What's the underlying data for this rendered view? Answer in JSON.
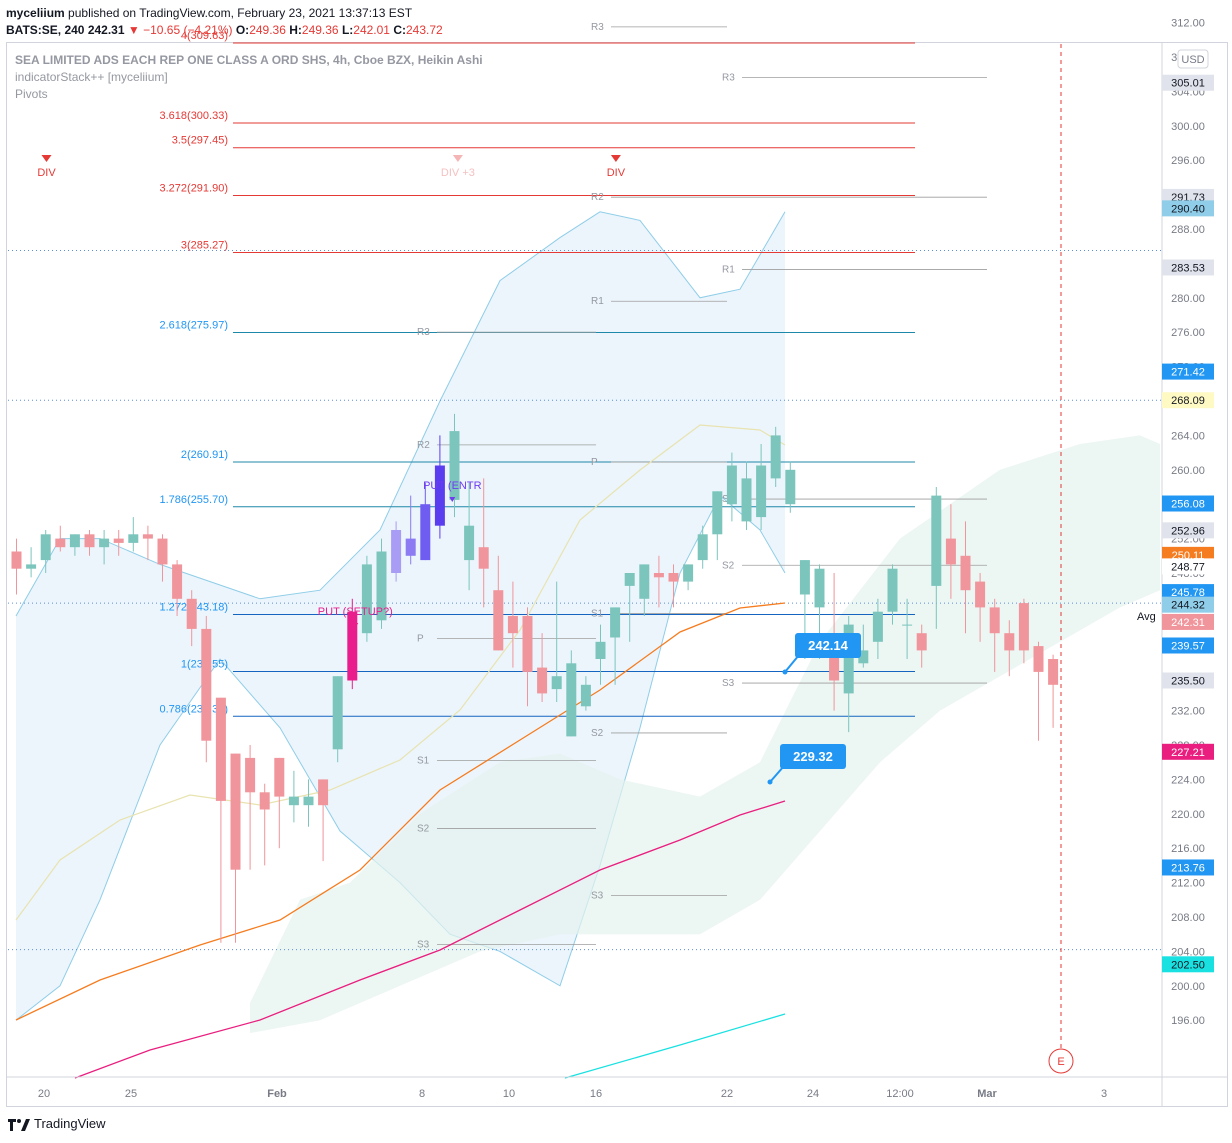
{
  "header": {
    "author": "myceliium",
    "published": "published on TradingView.com, February 23, 2021 13:37:13 EST",
    "symbol": "BATS:SE, 240",
    "last": "242.31",
    "change": "−10.65 (−4.21%)",
    "o_label": "O:",
    "o": "249.36",
    "h_label": "H:",
    "h": "249.36",
    "l_label": "L:",
    "l": "242.01",
    "c_label": "C:",
    "c": "243.72"
  },
  "legend": {
    "title": "SEA LIMITED ADS EACH REP ONE CLASS A ORD SHS, 4h, Cboe BZX, Heikin Ashi",
    "line2": "indicatorStack++ [myceliium]",
    "line3": "Pivots"
  },
  "footer": {
    "brand": "TradingView"
  },
  "currency": "USD",
  "avg_label": "Avg",
  "colors": {
    "up": "#7cc5bd",
    "down": "#f0959b",
    "bb": "#8fcde8",
    "ema_orange": "#f57c1f",
    "ema_magenta": "#e91e7f",
    "cyan": "#19e1e1",
    "fib_red": "#e53935",
    "fib_blue": "#2196f3"
  },
  "chart_data": {
    "type": "candlestick",
    "x_ticks": [
      "20",
      "25",
      "Feb",
      "8",
      "10",
      "16",
      "22",
      "24",
      "12:00",
      "Mar",
      "3"
    ],
    "y_ticks": [
      312,
      308,
      304,
      300,
      296,
      292,
      288,
      284,
      280,
      276,
      272,
      268,
      264,
      260,
      256,
      252,
      248,
      244,
      240,
      236,
      232,
      228,
      224,
      220,
      216,
      212,
      208,
      204,
      200,
      196
    ],
    "ylim": [
      194.5,
      314.5
    ],
    "candles": [
      [
        250.5,
        248.5,
        252,
        245.5
      ],
      [
        248.5,
        249,
        251,
        247.5
      ],
      [
        249.5,
        252.5,
        253,
        248
      ],
      [
        252,
        251,
        253.5,
        250.5
      ],
      [
        251,
        252.5,
        252.5,
        250
      ],
      [
        252.5,
        251,
        253,
        250
      ],
      [
        251,
        252,
        253,
        249
      ],
      [
        252,
        251.5,
        253,
        250
      ],
      [
        251.5,
        252.5,
        254.5,
        250.5
      ],
      [
        252.5,
        252,
        253.5,
        249.5
      ],
      [
        252,
        249,
        252.5,
        247
      ],
      [
        249,
        245,
        249.5,
        243
      ],
      [
        245,
        241.5,
        246,
        239.5
      ],
      [
        241.5,
        228.5,
        243,
        226
      ],
      [
        233.5,
        221.5,
        233.5,
        205
      ],
      [
        227,
        213.5,
        227,
        205
      ],
      [
        226.5,
        222.5,
        228,
        213.5
      ],
      [
        222.5,
        220.5,
        223.5,
        214
      ],
      [
        226.5,
        222,
        226.5,
        216
      ],
      [
        221,
        222,
        225,
        219
      ],
      [
        221,
        222,
        224,
        218.5
      ],
      [
        224,
        221,
        224,
        214.5
      ],
      [
        227.5,
        236,
        236,
        226
      ],
      [
        235.5,
        243.5,
        245,
        234.5
      ],
      [
        241,
        249,
        250,
        240
      ],
      [
        242.5,
        250.5,
        252,
        241.5
      ],
      [
        248,
        253,
        254,
        247
      ],
      [
        250,
        252,
        257,
        249
      ],
      [
        256,
        249.5,
        258.5,
        249.5
      ],
      [
        260.5,
        253.5,
        264,
        252
      ],
      [
        256.5,
        264.5,
        266.5,
        254.5
      ],
      [
        249.5,
        253.5,
        258.5,
        246
      ],
      [
        251,
        248.5,
        259,
        244
      ],
      [
        246,
        239,
        250,
        239
      ],
      [
        243,
        241,
        247,
        237
      ],
      [
        243,
        236.5,
        244,
        232.5
      ],
      [
        237,
        234,
        241,
        233
      ],
      [
        234.5,
        236,
        247,
        233
      ],
      [
        229,
        237.5,
        239,
        229
      ],
      [
        232.5,
        235,
        236,
        232
      ],
      [
        238,
        240,
        242,
        235
      ],
      [
        240.5,
        244,
        244,
        235
      ],
      [
        246.5,
        248,
        248,
        240
      ],
      [
        245,
        249,
        249,
        243
      ],
      [
        248,
        247.5,
        250,
        244
      ],
      [
        248,
        247,
        249,
        244
      ],
      [
        247,
        249,
        249,
        246
      ],
      [
        249.5,
        252.5,
        253.5,
        248.5
      ],
      [
        252.5,
        257.5,
        257.5,
        249.5
      ],
      [
        256,
        260.5,
        262,
        254
      ],
      [
        254,
        259,
        261,
        253
      ],
      [
        254.5,
        260.5,
        263,
        253
      ],
      [
        259,
        264,
        265,
        258
      ],
      [
        256,
        260,
        261,
        255
      ],
      [
        245.5,
        249.5,
        249.5,
        238
      ],
      [
        244,
        248.5,
        249,
        238
      ],
      [
        240,
        235.5,
        248,
        232
      ],
      [
        234,
        242,
        243,
        229.5
      ],
      [
        237.5,
        239,
        242,
        237
      ],
      [
        240,
        243.5,
        245,
        238
      ],
      [
        243.5,
        248.5,
        249,
        242
      ],
      [
        242,
        242,
        245,
        238
      ],
      [
        241,
        239,
        242,
        237
      ],
      [
        246.5,
        257,
        258,
        241.5
      ],
      [
        252,
        249,
        256,
        245
      ],
      [
        250,
        246,
        254,
        241
      ],
      [
        247,
        244,
        248,
        240
      ],
      [
        244,
        241,
        245,
        236.5
      ],
      [
        241,
        239,
        242.5,
        236
      ],
      [
        244.5,
        239,
        245,
        237.5
      ],
      [
        239.5,
        236.5,
        240,
        228.5
      ],
      [
        238,
        235,
        238.5,
        230
      ]
    ],
    "fib_levels": [
      {
        "ratio": "4",
        "value": 309.63,
        "label": "4(309.63)"
      },
      {
        "ratio": "3.618",
        "value": 300.33,
        "label": "3.618(300.33)"
      },
      {
        "ratio": "3.5",
        "value": 297.45,
        "label": "3.5(297.45)"
      },
      {
        "ratio": "3.272",
        "value": 291.9,
        "label": "3.272(291.90)"
      },
      {
        "ratio": "3",
        "value": 285.27,
        "label": "3(285.27)"
      },
      {
        "ratio": "2.618",
        "value": 275.97,
        "label": "2.618(275.97)"
      },
      {
        "ratio": "2",
        "value": 260.91,
        "label": "2(260.91)"
      },
      {
        "ratio": "1.786",
        "value": 255.7,
        "label": "1.786(255.70)"
      },
      {
        "ratio": "1.272",
        "value": 243.18,
        "label": "1.272(243.18)"
      },
      {
        "ratio": "1",
        "value": 236.55,
        "label": "1(236.55)"
      },
      {
        "ratio": "0.786",
        "value": 231.34,
        "label": "0.786(231.34)"
      }
    ],
    "pivots": [
      {
        "label": "R3",
        "value": 311.5,
        "x0": "16",
        "x1": "22"
      },
      {
        "label": "R3",
        "value": 305.6,
        "x0": "22",
        "x1": "24"
      },
      {
        "label": "R2",
        "value": 291.7,
        "x0": "16",
        "x1": "24"
      },
      {
        "label": "R1",
        "value": 283.3,
        "x0": "22",
        "x1": "24"
      },
      {
        "label": "R1",
        "value": 279.6,
        "x0": "16",
        "x1": "22"
      },
      {
        "label": "R3",
        "value": 276.0,
        "x0": "8",
        "x1": "16"
      },
      {
        "label": "R2",
        "value": 262.9,
        "x0": "8",
        "x1": "16"
      },
      {
        "label": "P",
        "value": 260.9,
        "x0": "16",
        "x1": "22"
      },
      {
        "label": "S1",
        "value": 256.6,
        "x0": "22",
        "x1": "24"
      },
      {
        "label": "S2",
        "value": 248.9,
        "x0": "22",
        "x1": "24"
      },
      {
        "label": "S1",
        "value": 243.3,
        "x0": "16",
        "x1": "22"
      },
      {
        "label": "P",
        "value": 240.4,
        "x0": "8",
        "x1": "16"
      },
      {
        "label": "S3",
        "value": 235.2,
        "x0": "22",
        "x1": "24"
      },
      {
        "label": "S2",
        "value": 229.4,
        "x0": "16",
        "x1": "22"
      },
      {
        "label": "S1",
        "value": 226.2,
        "x0": "8",
        "x1": "16"
      },
      {
        "label": "S2",
        "value": 218.3,
        "x0": "8",
        "x1": "16"
      },
      {
        "label": "S3",
        "value": 210.5,
        "x0": "16",
        "x1": "22"
      },
      {
        "label": "S3",
        "value": 204.8,
        "x0": "8",
        "x1": "16"
      }
    ],
    "markers": [
      {
        "text": "DIV",
        "index": 0,
        "type": "div"
      },
      {
        "text": "DIV",
        "index": 39,
        "type": "div"
      },
      {
        "text": "DIV +3",
        "index": 29,
        "type": "faint"
      },
      {
        "text": "PUT (SETUP?)",
        "index": 23
      },
      {
        "text": "PUT (ENTR",
        "index": 28
      }
    ],
    "callouts": [
      {
        "value": "242.14"
      },
      {
        "value": "229.32"
      }
    ],
    "axis_labels": [
      {
        "value": 305.01,
        "text": "305.01",
        "bg": "#e0e3eb",
        "fg": "#131722"
      },
      {
        "value": 291.73,
        "text": "291.73",
        "bg": "#e0e3eb",
        "fg": "#131722"
      },
      {
        "value": 290.4,
        "text": "290.40",
        "bg": "#8fcde8",
        "fg": "#131722"
      },
      {
        "value": 283.53,
        "text": "283.53",
        "bg": "#e0e3eb",
        "fg": "#131722"
      },
      {
        "value": 271.42,
        "text": "271.42",
        "bg": "#2196f3",
        "fg": "#ffffff"
      },
      {
        "value": 268.09,
        "text": "268.09",
        "bg": "#fff9c4",
        "fg": "#131722"
      },
      {
        "value": 256.08,
        "text": "256.08",
        "bg": "#2196f3",
        "fg": "#ffffff"
      },
      {
        "value": 252.96,
        "text": "252.96",
        "bg": "#e0e3eb",
        "fg": "#131722"
      },
      {
        "value": 250.11,
        "text": "250.11",
        "bg": "#f57c1f",
        "fg": "#ffffff"
      },
      {
        "value": 248.77,
        "text": "248.77",
        "bg": "#ffffff",
        "fg": "#131722"
      },
      {
        "value": 245.78,
        "text": "245.78",
        "bg": "#2196f3",
        "fg": "#ffffff"
      },
      {
        "value": 244.32,
        "text": "244.32",
        "bg": "#8fcde8",
        "fg": "#131722"
      },
      {
        "value": 242.31,
        "text": "242.31",
        "bg": "#f0959b",
        "fg": "#ffffff"
      },
      {
        "value": 239.57,
        "text": "239.57",
        "bg": "#2196f3",
        "fg": "#ffffff"
      },
      {
        "value": 235.5,
        "text": "235.50",
        "bg": "#e0e3eb",
        "fg": "#131722"
      },
      {
        "value": 227.21,
        "text": "227.21",
        "bg": "#e91e7f",
        "fg": "#ffffff"
      },
      {
        "value": 213.76,
        "text": "213.76",
        "bg": "#2196f3",
        "fg": "#ffffff"
      },
      {
        "value": 202.5,
        "text": "202.50",
        "bg": "#19e1e1",
        "fg": "#131722"
      }
    ]
  }
}
